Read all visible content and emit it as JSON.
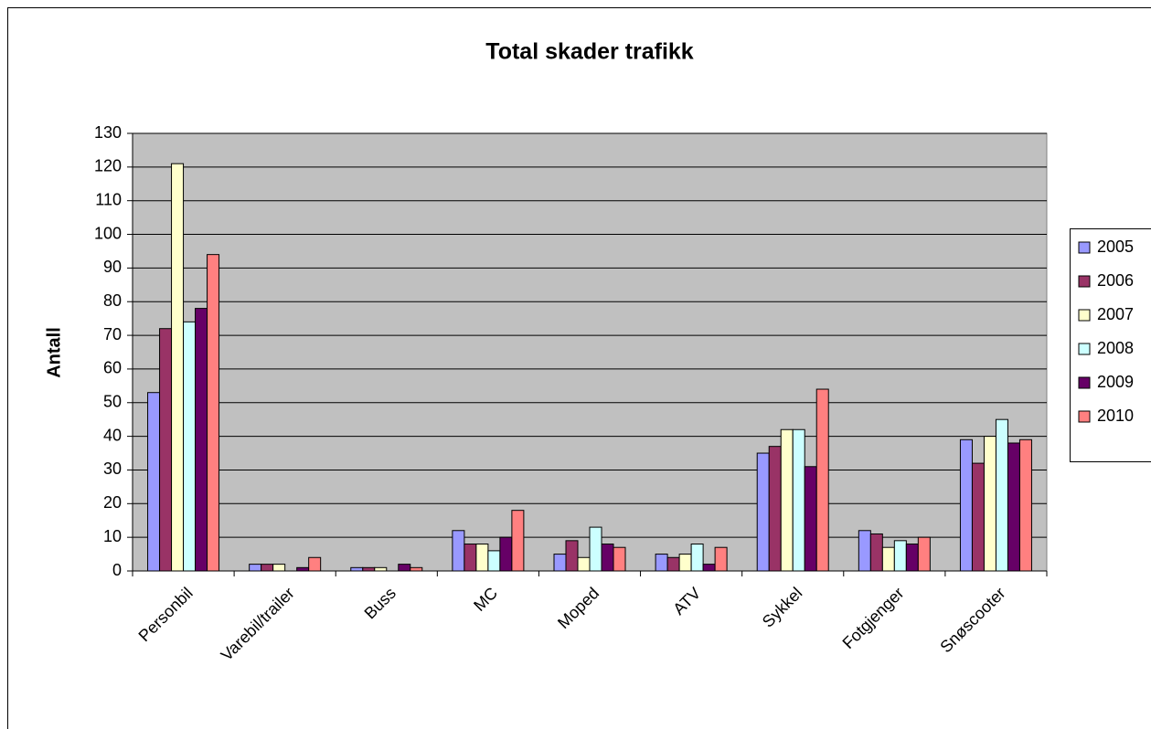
{
  "chart_data": {
    "type": "bar",
    "title": "Total skader trafikk",
    "y_label": "Antall",
    "categories": [
      "Personbil",
      "Varebil/trailer",
      "Buss",
      "MC",
      "Moped",
      "ATV",
      "Sykkel",
      "Fotgjenger",
      "Snøscooter"
    ],
    "series": [
      {
        "name": "2005",
        "color": "#9999ff",
        "values": [
          53,
          2,
          1,
          12,
          5,
          5,
          35,
          12,
          39
        ]
      },
      {
        "name": "2006",
        "color": "#993366",
        "values": [
          72,
          2,
          1,
          8,
          9,
          4,
          37,
          11,
          32
        ]
      },
      {
        "name": "2007",
        "color": "#ffffcc",
        "values": [
          121,
          2,
          1,
          8,
          4,
          5,
          42,
          7,
          40
        ]
      },
      {
        "name": "2008",
        "color": "#ccffff",
        "values": [
          74,
          0,
          0,
          6,
          13,
          8,
          42,
          9,
          45
        ]
      },
      {
        "name": "2009",
        "color": "#660066",
        "values": [
          78,
          1,
          2,
          10,
          8,
          2,
          31,
          8,
          38
        ]
      },
      {
        "name": "2010",
        "color": "#ff8080",
        "values": [
          94,
          4,
          1,
          18,
          7,
          7,
          54,
          10,
          39
        ]
      }
    ],
    "ylim": [
      0,
      130
    ],
    "yticks": [
      0,
      10,
      20,
      30,
      40,
      50,
      60,
      70,
      80,
      90,
      100,
      110,
      120,
      130
    ],
    "grid": true,
    "legend": "right"
  }
}
